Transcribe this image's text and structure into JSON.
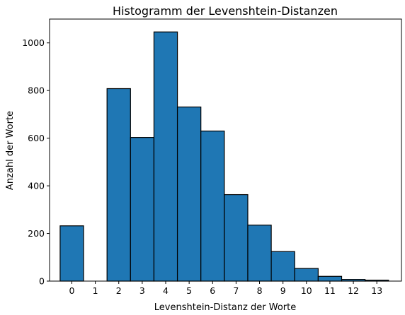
{
  "chart_data": {
    "type": "bar",
    "title": "Histogramm der Levenshtein-Distanzen",
    "xlabel": "Levenshtein-Distanz der Worte",
    "ylabel": "Anzahl der Worte",
    "categories": [
      "0",
      "1",
      "2",
      "3",
      "4",
      "5",
      "6",
      "7",
      "8",
      "9",
      "10",
      "11",
      "12",
      "13"
    ],
    "values": [
      232,
      0,
      808,
      603,
      1046,
      731,
      630,
      363,
      235,
      124,
      53,
      20,
      7,
      4
    ],
    "ylim": [
      0,
      1100
    ],
    "yticks": [
      "0",
      "200",
      "400",
      "600",
      "800",
      "1000"
    ],
    "grid": false,
    "legend": "none",
    "bar_color": "#1f77b4",
    "edge_color": "#000000"
  }
}
